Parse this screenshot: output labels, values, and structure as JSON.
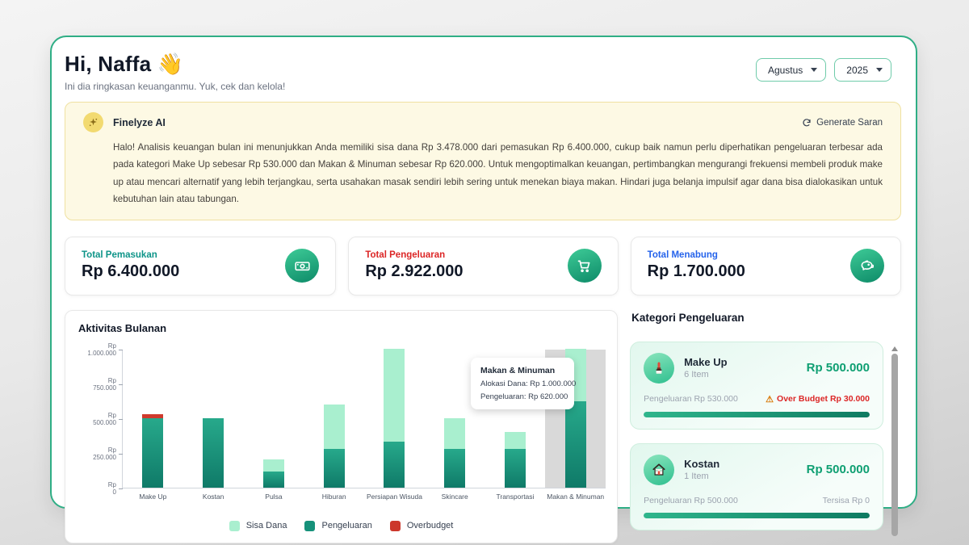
{
  "header": {
    "title": "Hi, Naffa 👋",
    "subtitle": "Ini dia ringkasan keuanganmu. Yuk, cek dan kelola!",
    "month_select": "Agustus",
    "year_select": "2025"
  },
  "ai_card": {
    "title": "Finelyze AI",
    "generate_label": "Generate Saran",
    "body": "Halo! Analisis keuangan bulan ini menunjukkan Anda memiliki sisa dana Rp 3.478.000 dari pemasukan Rp 6.400.000, cukup baik namun perlu diperhatikan pengeluaran terbesar ada pada kategori Make Up sebesar Rp 530.000 dan Makan & Minuman sebesar Rp 620.000. Untuk mengoptimalkan keuangan, pertimbangkan mengurangi frekuensi membeli produk make up atau mencari alternatif yang lebih terjangkau, serta usahakan masak sendiri lebih sering untuk menekan biaya makan. Hindari juga belanja impulsif agar dana bisa dialokasikan untuk kebutuhan lain atau tabungan."
  },
  "stats": {
    "income": {
      "label": "Total Pemasukan",
      "value": "Rp 6.400.000",
      "label_color": "#0d9488",
      "icon": "banknote-icon"
    },
    "expense": {
      "label": "Total Pengeluaran",
      "value": "Rp 2.922.000",
      "label_color": "#dc2626",
      "icon": "cart-icon"
    },
    "savings": {
      "label": "Total Menabung",
      "value": "Rp 1.700.000",
      "label_color": "#2563eb",
      "icon": "piggy-bank-icon"
    }
  },
  "chart_data": {
    "type": "bar",
    "stacked": true,
    "title": "Aktivitas Bulanan",
    "categories": [
      "Make Up",
      "Kostan",
      "Pulsa",
      "Hiburan",
      "Persiapan Wisuda",
      "Skincare",
      "Transportasi",
      "Makan & Minuman"
    ],
    "alokasi": [
      500000,
      500000,
      200000,
      600000,
      1000000,
      500000,
      400000,
      1000000
    ],
    "pengeluaran": [
      530000,
      500000,
      112000,
      275000,
      330000,
      280000,
      275000,
      620000
    ],
    "series": [
      {
        "name": "Pengeluaran",
        "color": "#179179",
        "values": [
          500000,
          500000,
          112000,
          275000,
          330000,
          280000,
          275000,
          620000
        ]
      },
      {
        "name": "Sisa Dana",
        "color": "#a9efcf",
        "values": [
          0,
          0,
          88000,
          325000,
          670000,
          220000,
          125000,
          380000
        ]
      },
      {
        "name": "Overbudget",
        "color": "#cf3a2d",
        "values": [
          30000,
          0,
          0,
          0,
          0,
          0,
          0,
          0
        ]
      }
    ],
    "ylim": [
      0,
      1000000
    ],
    "y_ticks": [
      "Rp\n1.000.000",
      "Rp\n750.000",
      "Rp\n500.000",
      "Rp\n250.000",
      "Rp 0"
    ],
    "grid": false,
    "legend_position": "bottom",
    "legend_items": [
      {
        "label": "Sisa Dana",
        "color": "#a9efcf"
      },
      {
        "label": "Pengeluaran",
        "color": "#16917a"
      },
      {
        "label": "Overbudget",
        "color": "#cc372b"
      }
    ],
    "highlighted_category": "Makan & Minuman"
  },
  "tooltip": {
    "title": "Makan & Minuman",
    "line1": "Alokasi Dana: Rp 1.000.000",
    "line2": "Pengeluaran: Rp 620.000"
  },
  "categories_panel": {
    "title": "Kategori Pengeluaran",
    "items": [
      {
        "name": "Make Up",
        "count": "6 Item",
        "budget": "Rp 500.000",
        "spent_label": "Pengeluaran Rp 530.000",
        "status_label": "Over Budget Rp 30.000",
        "status_type": "over",
        "warn_icon": "⚠",
        "icon": "lipstick-icon",
        "progress_pct": 100
      },
      {
        "name": "Kostan",
        "count": "1 Item",
        "budget": "Rp 500.000",
        "spent_label": "Pengeluaran Rp 500.000",
        "status_label": "Tersisa Rp 0",
        "status_type": "ok",
        "warn_icon": "",
        "icon": "house-icon",
        "progress_pct": 100
      }
    ]
  },
  "colors": {
    "accent": "#2fae85",
    "bar_dark": "#179179",
    "bar_light": "#a9efcf",
    "bar_over": "#cf3a2d",
    "income_label": "#0d9488",
    "expense_label": "#dc2626",
    "savings_label": "#2563eb"
  }
}
